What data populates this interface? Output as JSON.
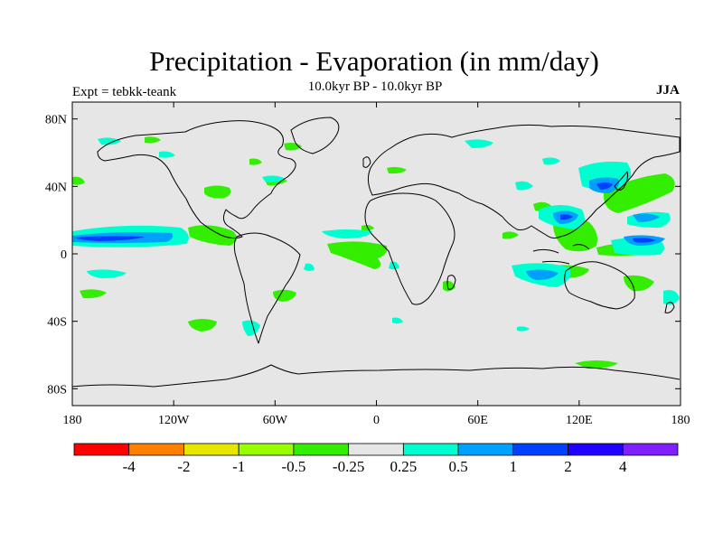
{
  "title": "Precipitation - Evaporation (in mm/day)",
  "subtitle": "10.0kyr BP - 10.0kyr BP",
  "left_label": "Expt = tebkk-teank",
  "right_label": "JJA",
  "lat_ticks": [
    {
      "lat": 80,
      "label": "80N"
    },
    {
      "lat": 40,
      "label": "40N"
    },
    {
      "lat": 0,
      "label": "0"
    },
    {
      "lat": -40,
      "label": "40S"
    },
    {
      "lat": -80,
      "label": "80S"
    }
  ],
  "lon_ticks": [
    {
      "lon": -180,
      "label": "180"
    },
    {
      "lon": -120,
      "label": "120W"
    },
    {
      "lon": -60,
      "label": "60W"
    },
    {
      "lon": 0,
      "label": "0"
    },
    {
      "lon": 60,
      "label": "60E"
    },
    {
      "lon": 120,
      "label": "120E"
    },
    {
      "lon": 180,
      "label": "180"
    }
  ],
  "colorbar": {
    "colors": [
      "#ff0000",
      "#ff8000",
      "#e6e600",
      "#99ff00",
      "#33ee00",
      "#e6e6e6",
      "#00ffd0",
      "#00a0ff",
      "#0040ff",
      "#2000ff",
      "#8020ff"
    ],
    "labels": [
      "-4",
      "-2",
      "-1",
      "-0.5",
      "-0.25",
      "0.25",
      "0.5",
      "1",
      "2",
      "4"
    ]
  },
  "map": {
    "ocean_color": "#e6e6e6",
    "coast_color": "#000000"
  }
}
